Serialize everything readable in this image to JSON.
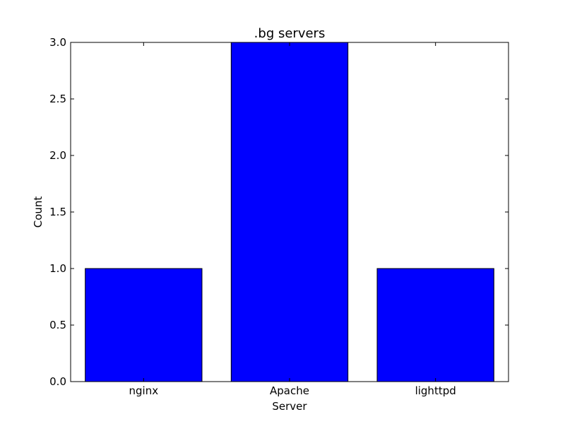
{
  "chart_data": {
    "type": "bar",
    "title": ".bg servers",
    "xlabel": "Server",
    "ylabel": "Count",
    "categories": [
      "nginx",
      "Apache",
      "lighttpd"
    ],
    "values": [
      1,
      3,
      1
    ],
    "ylim": [
      0,
      3.0
    ],
    "yticks": [
      "0.0",
      "0.5",
      "1.0",
      "1.5",
      "2.0",
      "2.5",
      "3.0"
    ],
    "grid": false,
    "bar_color": "#0000ff",
    "edge_color": "#000000"
  }
}
